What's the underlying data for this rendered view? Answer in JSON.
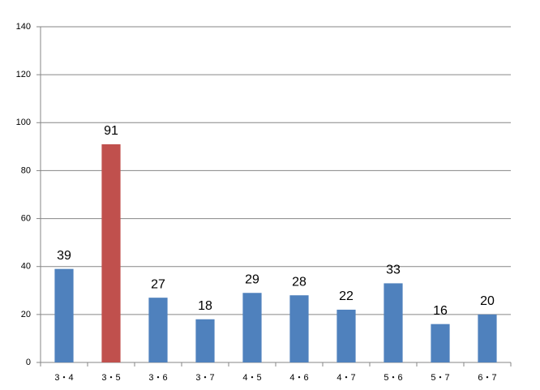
{
  "chart_data": {
    "type": "bar",
    "categories": [
      "3・4",
      "3・5",
      "3・6",
      "3・7",
      "4・5",
      "4・6",
      "4・7",
      "5・6",
      "5・7",
      "6・7"
    ],
    "values": [
      39,
      91,
      27,
      18,
      29,
      28,
      22,
      33,
      16,
      20
    ],
    "colors": [
      "#4f81bd",
      "#c0504d",
      "#4f81bd",
      "#4f81bd",
      "#4f81bd",
      "#4f81bd",
      "#4f81bd",
      "#4f81bd",
      "#4f81bd",
      "#4f81bd"
    ],
    "ylim": [
      0,
      140
    ],
    "yticks": [
      0,
      20,
      40,
      60,
      80,
      100,
      120,
      140
    ],
    "grid": true
  }
}
